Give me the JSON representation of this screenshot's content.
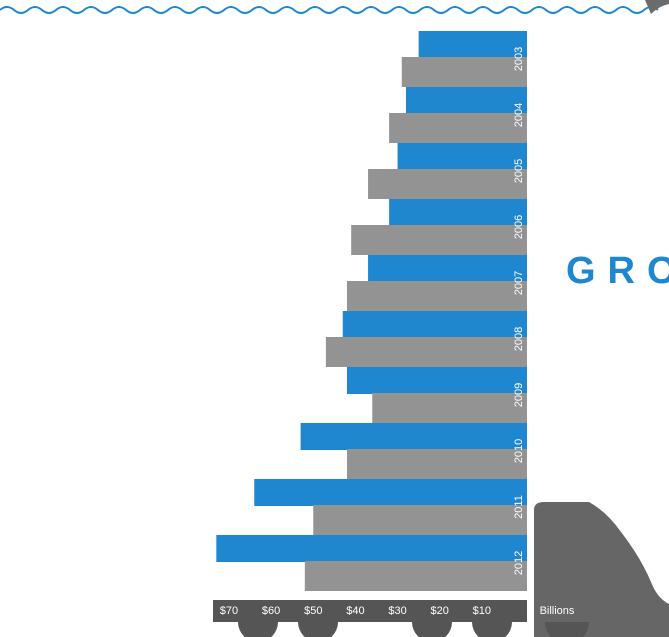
{
  "chart_data": {
    "type": "bar",
    "orientation": "horizontal",
    "heading": "GRO",
    "categories": [
      "2003",
      "2004",
      "2005",
      "2006",
      "2007",
      "2008",
      "2009",
      "2010",
      "2011",
      "2012"
    ],
    "series": [
      {
        "color": "#1f87cf",
        "values": [
          25,
          28,
          30,
          32,
          37,
          43,
          42,
          53,
          64,
          73
        ]
      },
      {
        "color": "#939393",
        "values": [
          29,
          32,
          37,
          41,
          42,
          47,
          36,
          42,
          50,
          52
        ]
      }
    ],
    "xlim": [
      0,
      74.5
    ],
    "xticks": [
      {
        "value": 70,
        "label": "$70"
      },
      {
        "value": 60,
        "label": "$60"
      },
      {
        "value": 50,
        "label": "$50"
      },
      {
        "value": 40,
        "label": "$40"
      },
      {
        "value": 30,
        "label": "$30"
      },
      {
        "value": 20,
        "label": "$20"
      },
      {
        "value": 10,
        "label": "$10"
      }
    ],
    "xlabel": "Billions"
  }
}
